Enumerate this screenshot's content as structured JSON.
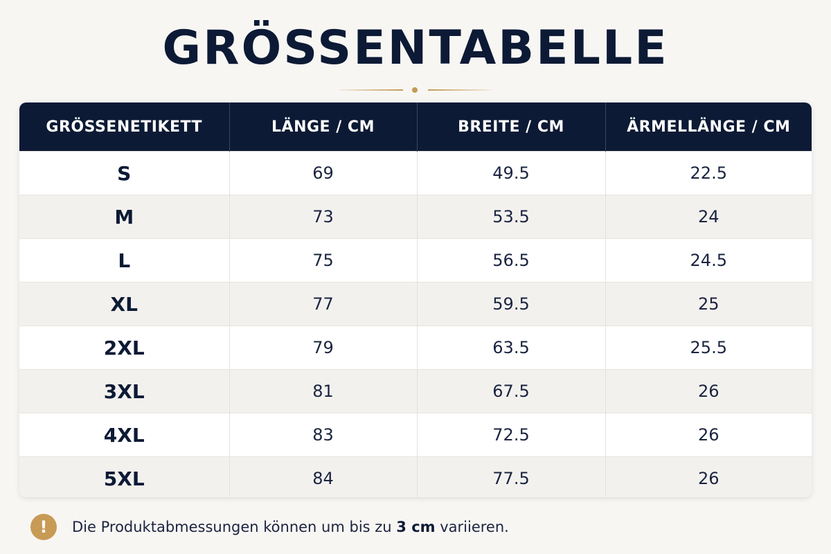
{
  "title": "GRÖSSENTABELLE",
  "colors": {
    "navy": "#0c1a35",
    "gold": "#c49a55",
    "background": "#f8f6f3"
  },
  "table": {
    "headers": [
      "GRÖSSENETIKETT",
      "LÄNGE / CM",
      "BREITE / CM",
      "ÄRMELLÄNGE / CM"
    ],
    "rows": [
      [
        "S",
        "69",
        "49.5",
        "22.5"
      ],
      [
        "M",
        "73",
        "53.5",
        "24"
      ],
      [
        "L",
        "75",
        "56.5",
        "24.5"
      ],
      [
        "XL",
        "77",
        "59.5",
        "25"
      ],
      [
        "2XL",
        "79",
        "63.5",
        "25.5"
      ],
      [
        "3XL",
        "81",
        "67.5",
        "26"
      ],
      [
        "4XL",
        "83",
        "72.5",
        "26"
      ],
      [
        "5XL",
        "84",
        "77.5",
        "26"
      ]
    ]
  },
  "note": {
    "icon": "exclamation-icon",
    "icon_glyph": "!",
    "text_before": "Die Produktabmessungen können um bis zu ",
    "text_bold": "3 cm",
    "text_after": " variieren."
  }
}
